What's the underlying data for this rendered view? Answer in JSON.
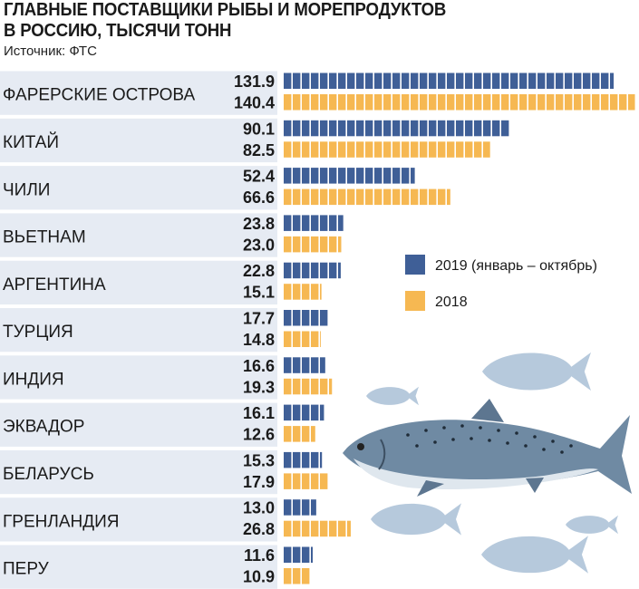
{
  "header": {
    "title_line1": "ГЛАВНЫЕ ПОСТАВЩИКИ РЫБЫ И МОРЕПРОДУКТОВ",
    "title_line2": "В РОССИЮ, ТЫСЯЧИ ТОНН",
    "source": "Источник: ФТС"
  },
  "colors": {
    "series_2019": "#3f5f97",
    "series_2018": "#f6b852",
    "row_band": "#e6ebf3",
    "fish": "#a9bfd6"
  },
  "chart_data": {
    "type": "bar",
    "orientation": "horizontal",
    "title": "ГЛАВНЫЕ ПОСТАВЩИКИ РЫБЫ И МОРЕПРОДУКТОВ В РОССИЮ, ТЫСЯЧИ ТОНН",
    "categories": [
      "ФАРЕРСКИЕ ОСТРОВА",
      "КИТАЙ",
      "ЧИЛИ",
      "ВЬЕТНАМ",
      "АРГЕНТИНА",
      "ТУРЦИЯ",
      "ИНДИЯ",
      "ЭКВАДОР",
      "БЕЛАРУСЬ",
      "ГРЕНЛАНДИЯ",
      "ПЕРУ"
    ],
    "series": [
      {
        "name": "2019 (январь – октябрь)",
        "values": [
          131.9,
          90.1,
          52.4,
          23.8,
          22.8,
          17.7,
          16.6,
          16.1,
          15.3,
          13.0,
          11.6
        ]
      },
      {
        "name": "2018",
        "values": [
          140.4,
          82.5,
          66.6,
          23.0,
          15.1,
          14.8,
          19.3,
          12.6,
          17.9,
          26.8,
          10.9
        ]
      }
    ],
    "value_labels": [
      [
        "131.9",
        "140.4"
      ],
      [
        "90.1",
        "82.5"
      ],
      [
        "52.4",
        "66.6"
      ],
      [
        "23.8",
        "23.0"
      ],
      [
        "22.8",
        "15.1"
      ],
      [
        "17.7",
        "14.8"
      ],
      [
        "16.6",
        "19.3"
      ],
      [
        "16.1",
        "12.6"
      ],
      [
        "15.3",
        "17.9"
      ],
      [
        "13.0",
        "26.8"
      ],
      [
        "11.6",
        "10.9"
      ]
    ],
    "legend_position": "right",
    "grid": false
  }
}
